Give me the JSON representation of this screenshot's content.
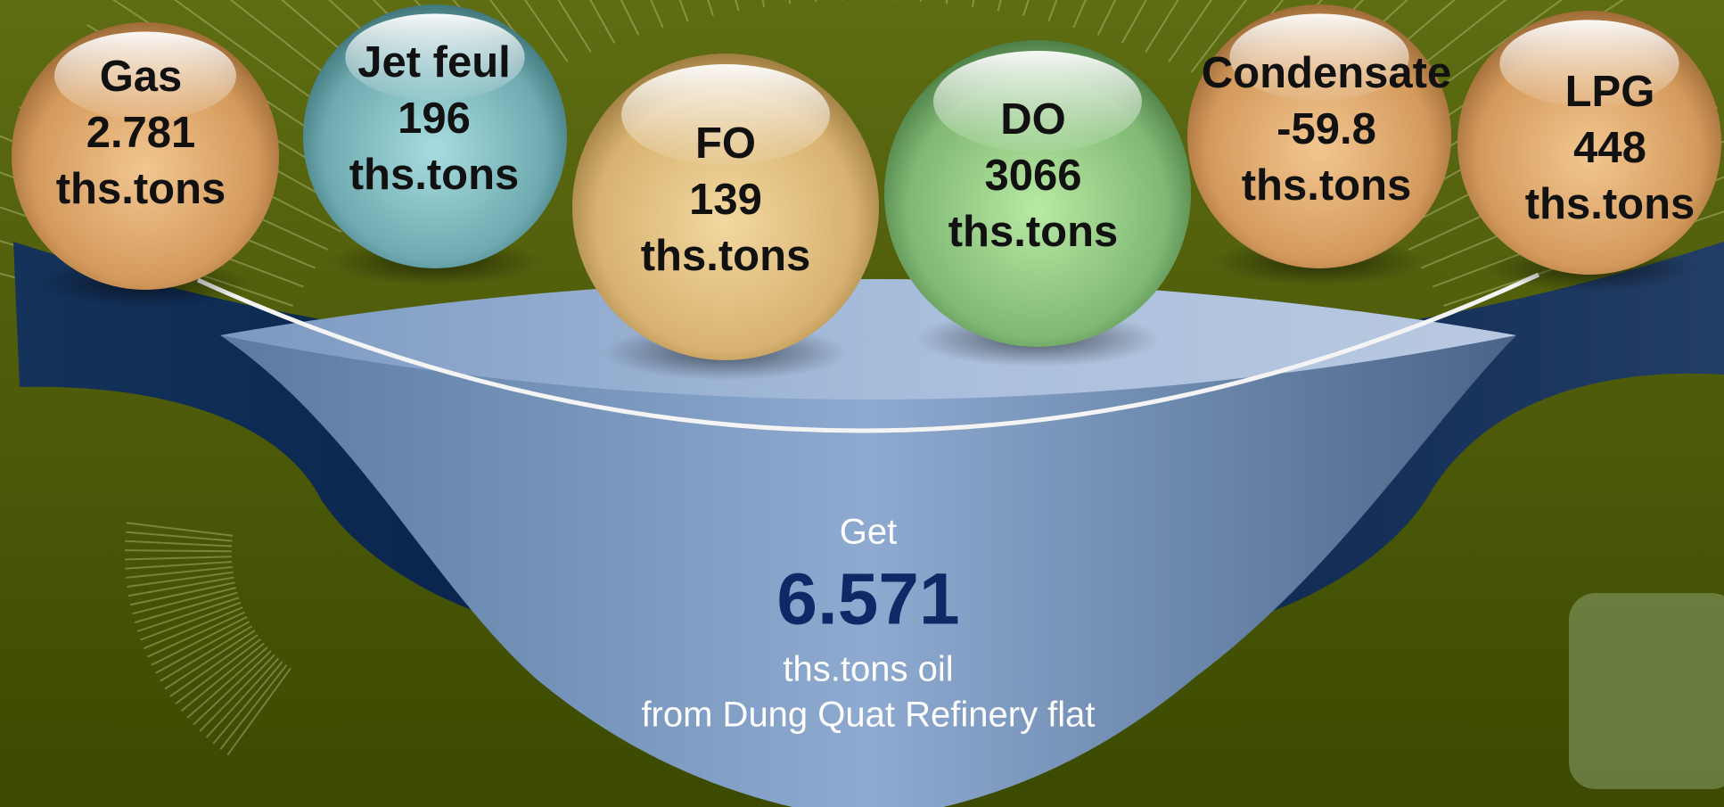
{
  "products": [
    {
      "name": "Gas",
      "value": "2.781",
      "unit": "ths.tons"
    },
    {
      "name": "Jet feul",
      "value": "196",
      "unit": "ths.tons"
    },
    {
      "name": "FO",
      "value": "139",
      "unit": "ths.tons"
    },
    {
      "name": "DO",
      "value": "3066",
      "unit": "ths.tons"
    },
    {
      "name": "Condensate",
      "value": "-59.8",
      "unit": "ths.tons"
    },
    {
      "name": "LPG",
      "value": "448",
      "unit": "ths.tons"
    }
  ],
  "total": {
    "prefix": "Get",
    "value": "6.571",
    "unit": "ths.tons oil",
    "source": "from Dung Quat Refinery flat"
  }
}
